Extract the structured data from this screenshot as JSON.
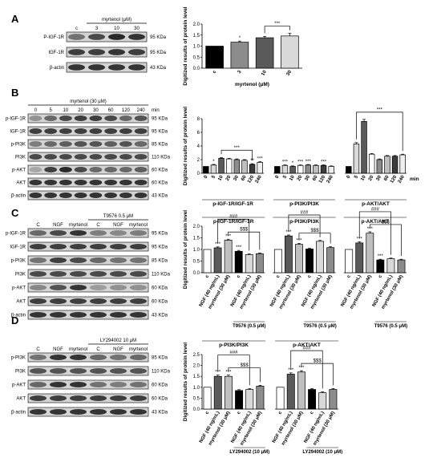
{
  "panels": {
    "A": {
      "label": "A",
      "blot": {
        "header": "myrtenol (μM)",
        "lanes": [
          "c",
          "3",
          "10",
          "30"
        ],
        "rows": [
          {
            "name": "P-IGF-1R",
            "kda": "95 KDa",
            "intensity": [
              0.55,
              0.75,
              0.9,
              0.85
            ]
          },
          {
            "name": "IGF-1R",
            "kda": "95 KDa",
            "intensity": [
              0.8,
              0.8,
              0.85,
              0.8
            ]
          },
          {
            "name": "β-actin",
            "kda": "43 KDa",
            "intensity": [
              0.85,
              0.85,
              0.85,
              0.85
            ]
          }
        ]
      }
    },
    "B": {
      "label": "B",
      "blot": {
        "header": "myrtenol (30 μM)",
        "lanes": [
          "0",
          "5",
          "10",
          "20",
          "30",
          "60",
          "120",
          "240"
        ],
        "unit": "min",
        "rows": [
          {
            "name": "p-IGF-1R",
            "kda": "95 KDa",
            "intensity": [
              0.4,
              0.6,
              0.75,
              0.8,
              0.8,
              0.75,
              0.6,
              0.7
            ]
          },
          {
            "name": "IGF-1R",
            "kda": "95 KDa",
            "intensity": [
              0.8,
              0.8,
              0.8,
              0.8,
              0.8,
              0.8,
              0.8,
              0.8
            ]
          },
          {
            "name": "p-PI3K",
            "kda": "85 KDa",
            "intensity": [
              0.5,
              0.6,
              0.65,
              0.7,
              0.7,
              0.65,
              0.7,
              0.6
            ]
          },
          {
            "name": "PI3K",
            "kda": "110 KDa",
            "intensity": [
              0.75,
              0.75,
              0.75,
              0.75,
              0.75,
              0.75,
              0.75,
              0.75
            ]
          },
          {
            "name": "p-AKT",
            "kda": "60 KDa",
            "intensity": [
              0.3,
              0.8,
              0.9,
              0.75,
              0.6,
              0.6,
              0.6,
              0.65
            ]
          },
          {
            "name": "AKT",
            "kda": "60 KDa",
            "intensity": [
              0.85,
              0.85,
              0.85,
              0.85,
              0.85,
              0.85,
              0.85,
              0.85
            ]
          },
          {
            "name": "β-actin",
            "kda": "43 KDa",
            "intensity": [
              0.85,
              0.85,
              0.85,
              0.85,
              0.85,
              0.85,
              0.85,
              0.85
            ]
          }
        ]
      }
    },
    "C": {
      "label": "C",
      "blot": {
        "header": "T9576  0.5 μM",
        "lanes": [
          "C",
          "NGF",
          "myrtenol",
          "C",
          "NGF",
          "myrtenol"
        ],
        "rows": [
          {
            "name": "p-IGF-1R",
            "kda": "95 KDa",
            "intensity": [
              0.6,
              0.75,
              0.85,
              0.5,
              0.45,
              0.5
            ]
          },
          {
            "name": "IGF-1R",
            "kda": "95 KDa",
            "intensity": [
              0.8,
              0.8,
              0.8,
              0.8,
              0.8,
              0.8
            ]
          },
          {
            "name": "p-PI3K",
            "kda": "85 KDa",
            "intensity": [
              0.55,
              0.8,
              0.75,
              0.6,
              0.55,
              0.55
            ]
          },
          {
            "name": "PI3K",
            "kda": "110 KDa",
            "intensity": [
              0.75,
              0.75,
              0.75,
              0.75,
              0.75,
              0.75
            ]
          },
          {
            "name": "p-AKT",
            "kda": "60 KDa",
            "intensity": [
              0.45,
              0.7,
              0.85,
              0.35,
              0.4,
              0.4
            ]
          },
          {
            "name": "AKT",
            "kda": "60 KDa",
            "intensity": [
              0.8,
              0.8,
              0.8,
              0.8,
              0.8,
              0.8
            ]
          },
          {
            "name": "β-actin",
            "kda": "43 KDa",
            "intensity": [
              0.85,
              0.85,
              0.85,
              0.85,
              0.85,
              0.85
            ]
          }
        ]
      }
    },
    "D": {
      "label": "D",
      "blot": {
        "header": "LY294002  10 μM",
        "lanes": [
          "C",
          "NGF",
          "myrtenol",
          "C",
          "NGF",
          "myrtenol"
        ],
        "rows": [
          {
            "name": "p-PI3K",
            "kda": "85 KDa",
            "intensity": [
              0.55,
              0.85,
              0.85,
              0.6,
              0.55,
              0.6
            ]
          },
          {
            "name": "PI3K",
            "kda": "110 KDa",
            "intensity": [
              0.7,
              0.7,
              0.7,
              0.7,
              0.7,
              0.7
            ]
          },
          {
            "name": "p-AKT",
            "kda": "60 KDa",
            "intensity": [
              0.6,
              0.85,
              0.85,
              0.55,
              0.5,
              0.55
            ]
          },
          {
            "name": "AKT",
            "kda": "60 KDa",
            "intensity": [
              0.8,
              0.8,
              0.8,
              0.8,
              0.8,
              0.8
            ]
          },
          {
            "name": "β-actin",
            "kda": "43 KDa",
            "intensity": [
              0.85,
              0.85,
              0.85,
              0.85,
              0.85,
              0.85
            ]
          }
        ]
      }
    }
  },
  "chart_data": [
    {
      "panel": "A",
      "type": "bar",
      "ylabel": "Digitized results of protein level",
      "xlabel": "myrtenol (μM)",
      "ylim": [
        0,
        2.0
      ],
      "yticks": [
        0.0,
        0.5,
        1.0,
        1.5,
        2.0
      ],
      "groups": [
        {
          "title": "",
          "categories": [
            "c",
            "3",
            "10",
            "30"
          ],
          "values": [
            1.0,
            1.18,
            1.38,
            1.46
          ],
          "errors": [
            0,
            0.05,
            0.06,
            0.12
          ],
          "fills": [
            "#000000",
            "#8c8c8c",
            "#5a5a5a",
            "#d9d9d9"
          ],
          "stars": [
            "",
            "*",
            "",
            ""
          ]
        }
      ],
      "brackets": [
        {
          "group": 0,
          "from": 2,
          "to": 3,
          "label": "***"
        }
      ]
    },
    {
      "panel": "B",
      "type": "bar",
      "ylabel": "Digitized results of protein level",
      "xunit": "min",
      "ylim": [
        0,
        8
      ],
      "yticks": [
        0,
        2,
        4,
        6,
        8
      ],
      "groups": [
        {
          "title": "p-IGF-1R/IGF-1R",
          "categories": [
            "0",
            "5",
            "10",
            "20",
            "30",
            "60",
            "120",
            "240"
          ],
          "values": [
            1.0,
            1.2,
            2.2,
            2.1,
            2.0,
            1.9,
            1.3,
            1.6
          ],
          "errors": [
            0,
            0.1,
            0.12,
            0.1,
            0.1,
            0.1,
            0.1,
            0.1
          ],
          "stars": [
            "",
            "*",
            "",
            "",
            "",
            "",
            "**",
            "***"
          ]
        },
        {
          "title": "p-PI3K/PI3K",
          "categories": [
            "0",
            "5",
            "10",
            "20",
            "30",
            "60",
            "120",
            "240"
          ],
          "values": [
            1.0,
            1.15,
            1.0,
            1.15,
            1.2,
            1.15,
            1.15,
            1.0
          ],
          "errors": [
            0,
            0.08,
            0.08,
            0.08,
            0.08,
            0.08,
            0.08,
            0.08
          ],
          "stars": [
            "",
            "***",
            "*",
            "***",
            "***",
            "",
            "***",
            ""
          ]
        },
        {
          "title": "p-AKT/AKT",
          "categories": [
            "0",
            "5",
            "10",
            "20",
            "30",
            "60",
            "120",
            "240"
          ],
          "values": [
            1.0,
            4.3,
            7.6,
            2.8,
            2.0,
            2.5,
            2.5,
            2.7
          ],
          "errors": [
            0,
            0.2,
            0.3,
            0.1,
            0.1,
            0.1,
            0.1,
            0.1
          ],
          "stars": [
            "",
            "",
            "",
            "",
            "",
            "",
            "",
            ""
          ]
        }
      ],
      "brackets": [
        {
          "group": 0,
          "from": 2,
          "to": 6,
          "label": "***"
        },
        {
          "group": 2,
          "from": 1,
          "to": 7,
          "label": "***"
        }
      ]
    },
    {
      "panel": "C",
      "type": "bar",
      "ylabel": "Digitized results of protein level",
      "ylim": [
        0,
        2.0
      ],
      "yticks": [
        0.0,
        0.5,
        1.0,
        1.5,
        2.0
      ],
      "groups": [
        {
          "title": "p-IGF-1R/IGF-1R",
          "categories": [
            "c",
            "NGF (40 ng/mL)",
            "myrtenol (30 μM)",
            "c",
            "NGF (40 ng/mL)",
            "myrtenol (30 μM)"
          ],
          "values": [
            1.0,
            1.07,
            1.4,
            0.92,
            0.78,
            0.82
          ],
          "errors": [
            0,
            0.04,
            0.04,
            0.04,
            0.03,
            0.03
          ],
          "stars": [
            "",
            "***",
            "***",
            "***",
            "",
            ""
          ]
        },
        {
          "title": "p-PI3K/PI3K",
          "categories": [
            "c",
            "NGF (40 ng/mL)",
            "myrtenol (30 μM)",
            "c",
            "NGF (40 ng/mL)",
            "myrtenol (30 μM)"
          ],
          "values": [
            1.0,
            1.58,
            1.22,
            1.02,
            1.35,
            1.08
          ],
          "errors": [
            0,
            0.04,
            0.04,
            0.04,
            0.04,
            0.04
          ],
          "stars": [
            "",
            "***",
            "***",
            "",
            "",
            ""
          ]
        },
        {
          "title": "p-AKT/AKT",
          "categories": [
            "c",
            "NGF (40 ng/mL)",
            "myrtenol (30 μM)",
            "c",
            "NGF (40 ng/mL)",
            "myrtenol (30 μM)"
          ],
          "values": [
            1.0,
            1.28,
            1.7,
            0.55,
            0.6,
            0.55
          ],
          "errors": [
            0,
            0.05,
            0.06,
            0.03,
            0.03,
            0.03
          ],
          "stars": [
            "",
            "***",
            "***",
            "***",
            "",
            ""
          ]
        }
      ],
      "group_sublabel": "T9576 (0.5 μM)",
      "brackets": [
        {
          "group": 0,
          "from": 1,
          "to": 4,
          "label": "###",
          "level": 2
        },
        {
          "group": 0,
          "from": 2,
          "to": 5,
          "label": "$$$",
          "level": 1
        },
        {
          "group": 1,
          "from": 1,
          "to": 4,
          "label": "###",
          "level": 2
        },
        {
          "group": 1,
          "from": 2,
          "to": 5,
          "label": "$$$",
          "level": 1
        },
        {
          "group": 2,
          "from": 1,
          "to": 4,
          "label": "###",
          "level": 2
        },
        {
          "group": 2,
          "from": 2,
          "to": 5,
          "label": "$$$",
          "level": 1
        }
      ]
    },
    {
      "panel": "D",
      "type": "bar",
      "ylabel": "Digitized results of protein level",
      "ylim": [
        0,
        2.5
      ],
      "yticks": [
        0.0,
        0.5,
        1.0,
        1.5,
        2.0,
        2.5
      ],
      "groups": [
        {
          "title": "p-PI3K/PI3K",
          "categories": [
            "c",
            "NGF (40 ng/mL)",
            "myrtenol (30 μM)",
            "c",
            "NGF (40 ng/mL)",
            "myrtenol (30 μM)"
          ],
          "values": [
            1.0,
            1.5,
            1.5,
            0.85,
            0.9,
            1.05
          ],
          "errors": [
            0,
            0.06,
            0.06,
            0.04,
            0.04,
            0.04
          ],
          "stars": [
            "",
            "***",
            "***",
            "",
            "",
            ""
          ]
        },
        {
          "title": "p-AKT/AKT",
          "categories": [
            "c",
            "NGF (40 ng/mL)",
            "myrtenol (30 μM)",
            "c",
            "NGF (40 ng/mL)",
            "myrtenol (30 μM)"
          ],
          "values": [
            1.0,
            1.6,
            1.7,
            0.9,
            0.75,
            0.9
          ],
          "errors": [
            0,
            0.06,
            0.06,
            0.04,
            0.04,
            0.04
          ],
          "stars": [
            "",
            "***",
            "***",
            "",
            "",
            ""
          ]
        }
      ],
      "group_sublabel": "LY294002 (10 μM)",
      "brackets": [
        {
          "group": 0,
          "from": 1,
          "to": 4,
          "label": "###",
          "level": 2
        },
        {
          "group": 0,
          "from": 2,
          "to": 5,
          "label": "$$$",
          "level": 1
        },
        {
          "group": 1,
          "from": 1,
          "to": 4,
          "label": "###",
          "level": 2
        },
        {
          "group": 1,
          "from": 2,
          "to": 5,
          "label": "$$$",
          "level": 1
        }
      ]
    }
  ],
  "bar_fills_six": [
    "#ffffff",
    "#5a5a5a",
    "#bfbfbf",
    "#000000",
    "#d9d9d9",
    "#8c8c8c"
  ],
  "bar_fills_eight": [
    "#000000",
    "#d9d9d9",
    "#5a5a5a",
    "#ffffff",
    "#8c8c8c",
    "#bfbfbf",
    "#3c3c3c",
    "#efefef"
  ]
}
